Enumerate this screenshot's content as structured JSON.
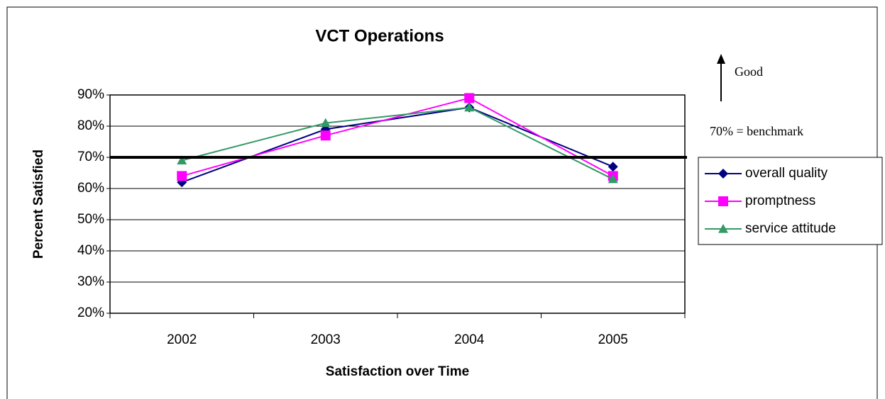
{
  "chart_data": {
    "type": "line",
    "title": "VCT Operations",
    "x_label": "Satisfaction over Time",
    "y_label": "Percent Satisfied",
    "categories": [
      "2002",
      "2003",
      "2004",
      "2005"
    ],
    "series": [
      {
        "name": "overall quality",
        "color": "#000080",
        "marker": "diamond",
        "values": [
          62,
          79,
          86,
          67
        ]
      },
      {
        "name": "promptness",
        "color": "#ff00ff",
        "marker": "square",
        "values": [
          64,
          77,
          89,
          64
        ]
      },
      {
        "name": "service attitude",
        "color": "#339966",
        "marker": "triangle",
        "values": [
          69,
          81,
          86,
          63
        ]
      }
    ],
    "ylim": [
      20,
      90
    ],
    "yticks": [
      {
        "value": 20,
        "label": "20%"
      },
      {
        "value": 30,
        "label": "30%"
      },
      {
        "value": 40,
        "label": "40%"
      },
      {
        "value": 50,
        "label": "50%"
      },
      {
        "value": 60,
        "label": "60%"
      },
      {
        "value": 70,
        "label": "70%"
      },
      {
        "value": 80,
        "label": "80%"
      },
      {
        "value": 90,
        "label": "90%"
      }
    ],
    "grid": true,
    "legend": "right",
    "benchmark": {
      "value": 70,
      "label": "70% = benchmark"
    },
    "annotation": "Good"
  }
}
